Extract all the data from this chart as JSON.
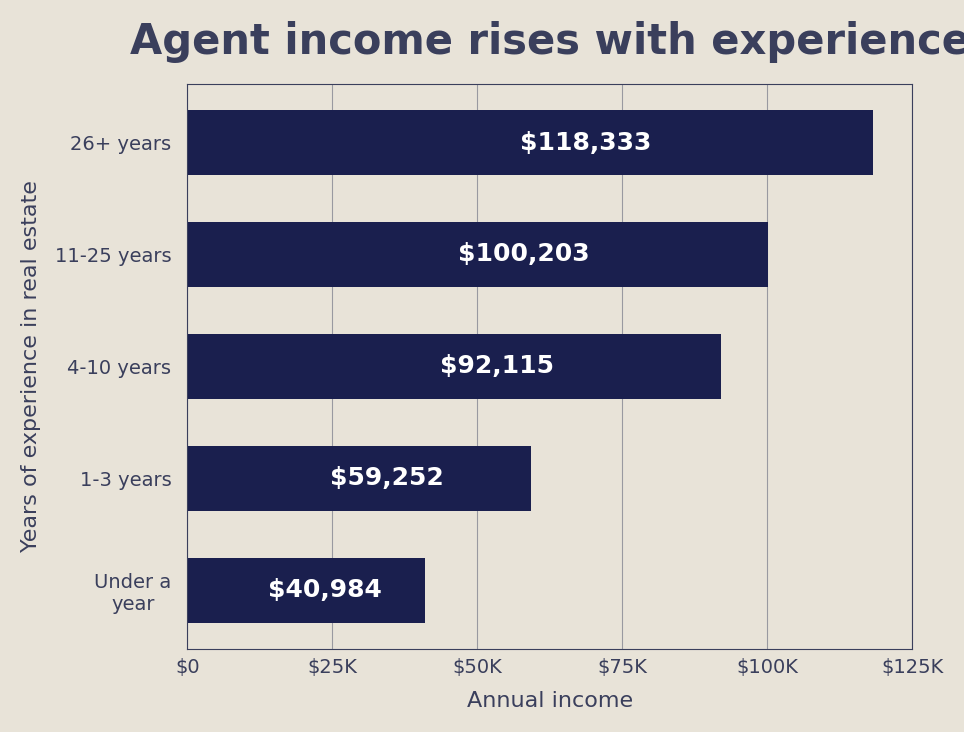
{
  "title": "Agent income rises with experience",
  "xlabel": "Annual income",
  "ylabel": "Years of experience in real estate",
  "categories": [
    "Under a\nyear",
    "1-3 years",
    "4-10 years",
    "11-25 years",
    "26+ years"
  ],
  "values": [
    40984,
    59252,
    92115,
    100203,
    118333
  ],
  "labels": [
    "$40,984",
    "$59,252",
    "$92,115",
    "$100,203",
    "$118,333"
  ],
  "bar_color": "#1a1f4e",
  "background_color": "#e8e3d8",
  "text_color": "#3a3f5c",
  "label_color": "#ffffff",
  "grid_color": "#3a3f5c",
  "xlim": [
    0,
    125000
  ],
  "xtick_values": [
    0,
    25000,
    50000,
    75000,
    100000,
    125000
  ],
  "xtick_labels": [
    "$0",
    "$25K",
    "$50K",
    "$75K",
    "$100K",
    "$125K"
  ],
  "title_fontsize": 30,
  "axis_label_fontsize": 16,
  "tick_fontsize": 14,
  "bar_label_fontsize": 18
}
